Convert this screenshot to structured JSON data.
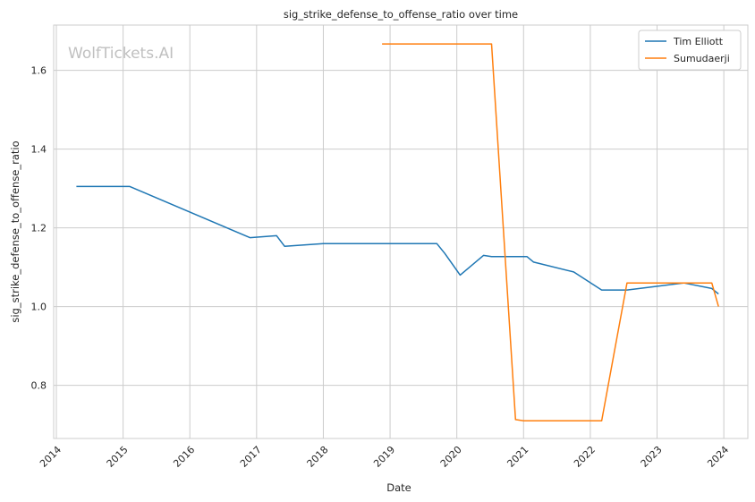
{
  "chart_data": {
    "type": "line",
    "title": "sig_strike_defense_to_offense_ratio over time",
    "xlabel": "Date",
    "ylabel": "sig_strike_defense_to_offense_ratio",
    "watermark": "WolfTickets.AI",
    "x_ticks": [
      "2014",
      "2015",
      "2016",
      "2017",
      "2018",
      "2019",
      "2020",
      "2021",
      "2022",
      "2023",
      "2024"
    ],
    "y_ticks": [
      "0.8",
      "1.0",
      "1.2",
      "1.4",
      "1.6"
    ],
    "xlim": [
      2013.96,
      2024.36
    ],
    "ylim": [
      0.665,
      1.715
    ],
    "grid": true,
    "legend_position": "top-right",
    "series": [
      {
        "name": "Tim Elliott",
        "color": "#1f77b4",
        "x": [
          2014.3,
          2015.1,
          2016.9,
          2017.3,
          2017.42,
          2018.0,
          2019.7,
          2019.82,
          2020.05,
          2020.4,
          2020.52,
          2021.05,
          2021.15,
          2021.75,
          2022.17,
          2022.55,
          2023.4,
          2023.82,
          2023.92
        ],
        "y": [
          1.305,
          1.305,
          1.175,
          1.18,
          1.153,
          1.16,
          1.16,
          1.135,
          1.08,
          1.13,
          1.127,
          1.127,
          1.113,
          1.088,
          1.042,
          1.042,
          1.06,
          1.046,
          1.032
        ]
      },
      {
        "name": "Sumudaerji",
        "color": "#ff7f0e",
        "x": [
          2018.88,
          2020.52,
          2020.88,
          2021.0,
          2022.17,
          2022.55,
          2023.82,
          2023.92
        ],
        "y": [
          1.667,
          1.667,
          0.713,
          0.71,
          0.71,
          1.06,
          1.06,
          1.0
        ]
      }
    ]
  }
}
